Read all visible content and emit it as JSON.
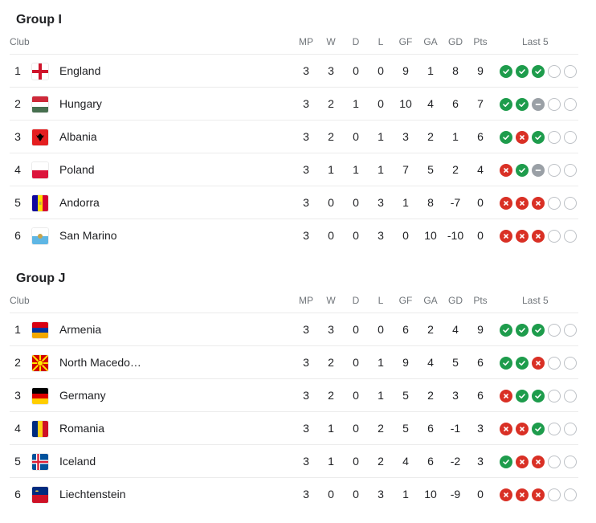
{
  "headers": {
    "club": "Club",
    "mp": "MP",
    "w": "W",
    "d": "D",
    "l": "L",
    "gf": "GF",
    "ga": "GA",
    "gd": "GD",
    "pts": "Pts",
    "last5": "Last 5"
  },
  "groups": [
    {
      "title": "Group I",
      "rows": [
        {
          "rank": "1",
          "team": "England",
          "flag": "england-flag",
          "mp": "3",
          "w": "3",
          "d": "0",
          "l": "0",
          "gf": "9",
          "ga": "1",
          "gd": "8",
          "pts": "9",
          "form": [
            "W",
            "W",
            "W",
            "E",
            "E"
          ]
        },
        {
          "rank": "2",
          "team": "Hungary",
          "flag": "hungary-flag",
          "mp": "3",
          "w": "2",
          "d": "1",
          "l": "0",
          "gf": "10",
          "ga": "4",
          "gd": "6",
          "pts": "7",
          "form": [
            "W",
            "W",
            "D",
            "E",
            "E"
          ]
        },
        {
          "rank": "3",
          "team": "Albania",
          "flag": "albania-flag",
          "mp": "3",
          "w": "2",
          "d": "0",
          "l": "1",
          "gf": "3",
          "ga": "2",
          "gd": "1",
          "pts": "6",
          "form": [
            "W",
            "L",
            "W",
            "E",
            "E"
          ]
        },
        {
          "rank": "4",
          "team": "Poland",
          "flag": "poland-flag",
          "mp": "3",
          "w": "1",
          "d": "1",
          "l": "1",
          "gf": "7",
          "ga": "5",
          "gd": "2",
          "pts": "4",
          "form": [
            "L",
            "W",
            "D",
            "E",
            "E"
          ]
        },
        {
          "rank": "5",
          "team": "Andorra",
          "flag": "andorra-flag",
          "mp": "3",
          "w": "0",
          "d": "0",
          "l": "3",
          "gf": "1",
          "ga": "8",
          "gd": "-7",
          "pts": "0",
          "form": [
            "L",
            "L",
            "L",
            "E",
            "E"
          ]
        },
        {
          "rank": "6",
          "team": "San Marino",
          "flag": "san-marino-flag",
          "mp": "3",
          "w": "0",
          "d": "0",
          "l": "3",
          "gf": "0",
          "ga": "10",
          "gd": "-10",
          "pts": "0",
          "form": [
            "L",
            "L",
            "L",
            "E",
            "E"
          ]
        }
      ]
    },
    {
      "title": "Group J",
      "rows": [
        {
          "rank": "1",
          "team": "Armenia",
          "flag": "armenia-flag",
          "mp": "3",
          "w": "3",
          "d": "0",
          "l": "0",
          "gf": "6",
          "ga": "2",
          "gd": "4",
          "pts": "9",
          "form": [
            "W",
            "W",
            "W",
            "E",
            "E"
          ]
        },
        {
          "rank": "2",
          "team": "North Macedo…",
          "flag": "north-macedonia-flag",
          "mp": "3",
          "w": "2",
          "d": "0",
          "l": "1",
          "gf": "9",
          "ga": "4",
          "gd": "5",
          "pts": "6",
          "form": [
            "W",
            "W",
            "L",
            "E",
            "E"
          ]
        },
        {
          "rank": "3",
          "team": "Germany",
          "flag": "germany-flag",
          "mp": "3",
          "w": "2",
          "d": "0",
          "l": "1",
          "gf": "5",
          "ga": "2",
          "gd": "3",
          "pts": "6",
          "form": [
            "L",
            "W",
            "W",
            "E",
            "E"
          ]
        },
        {
          "rank": "4",
          "team": "Romania",
          "flag": "romania-flag",
          "mp": "3",
          "w": "1",
          "d": "0",
          "l": "2",
          "gf": "5",
          "ga": "6",
          "gd": "-1",
          "pts": "3",
          "form": [
            "L",
            "L",
            "W",
            "E",
            "E"
          ]
        },
        {
          "rank": "5",
          "team": "Iceland",
          "flag": "iceland-flag",
          "mp": "3",
          "w": "1",
          "d": "0",
          "l": "2",
          "gf": "4",
          "ga": "6",
          "gd": "-2",
          "pts": "3",
          "form": [
            "W",
            "L",
            "L",
            "E",
            "E"
          ]
        },
        {
          "rank": "6",
          "team": "Liechtenstein",
          "flag": "liechtenstein-flag",
          "mp": "3",
          "w": "0",
          "d": "0",
          "l": "3",
          "gf": "1",
          "ga": "10",
          "gd": "-9",
          "pts": "0",
          "form": [
            "L",
            "L",
            "L",
            "E",
            "E"
          ]
        }
      ]
    }
  ],
  "colors": {
    "win": "#1e9c4c",
    "loss": "#d93025",
    "draw": "#9aa0a6",
    "empty": "#bdc1c6"
  }
}
